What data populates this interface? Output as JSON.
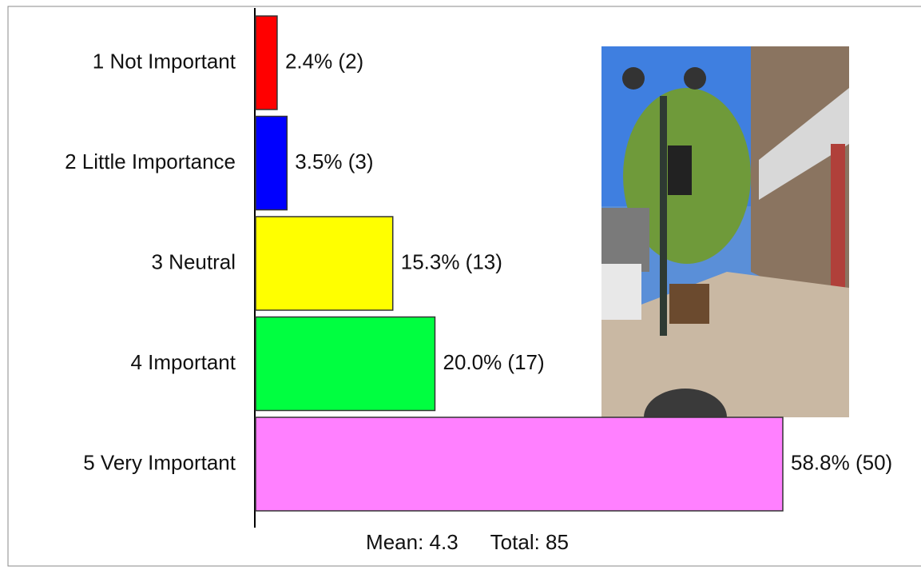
{
  "chart_data": {
    "type": "hbar",
    "categories": [
      "1 Not Important",
      "2 Little Importance",
      "3 Neutral",
      "4 Important",
      "5 Very Important"
    ],
    "values": [
      2.4,
      3.5,
      15.3,
      20.0,
      58.8
    ],
    "value_labels": [
      "2.4% (2)",
      "3.5% (3)",
      "15.3% (13)",
      "20.0% (17)",
      "58.8% (50)"
    ],
    "colors": [
      "#ff0000",
      "#0000ff",
      "#ffff00",
      "#00ff40",
      "#ff80ff"
    ],
    "mean": "Mean: 4.3",
    "total": "Total: 85"
  }
}
